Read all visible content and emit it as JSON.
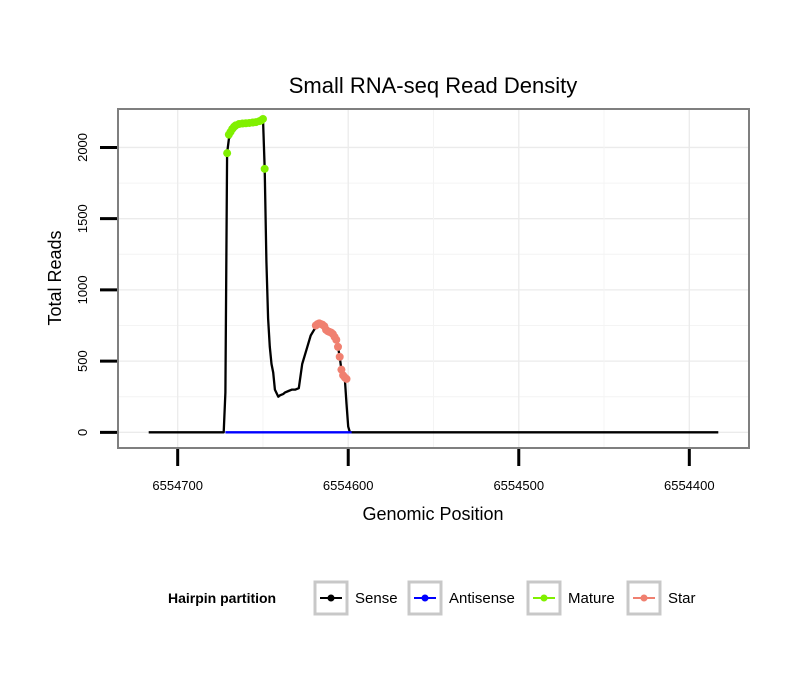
{
  "chart_data": {
    "type": "line",
    "title": "Small RNA-seq Read Density",
    "xlabel": "Genomic Position",
    "ylabel": "Total Reads",
    "x_reversed": true,
    "xlim": [
      6554735,
      6554365
    ],
    "ylim": [
      -110,
      2270
    ],
    "x_ticks": [
      6554700,
      6554600,
      6554500,
      6554400
    ],
    "x_tick_labels": [
      "6554700",
      "6554600",
      "6554500",
      "6554400"
    ],
    "y_ticks": [
      0,
      500,
      1000,
      1500,
      2000
    ],
    "y_tick_labels": [
      "0",
      "500",
      "1000",
      "1500",
      "2000"
    ],
    "grid": true,
    "legend": {
      "title": "Hairpin partition",
      "position": "bottom",
      "entries": [
        {
          "label": "Sense",
          "color": "#000000"
        },
        {
          "label": "Antisense",
          "color": "#0000ff"
        },
        {
          "label": "Mature",
          "color": "#80f000"
        },
        {
          "label": "Star",
          "color": "#f08070"
        }
      ]
    },
    "series": [
      {
        "name": "Sense",
        "color": "#000000",
        "markers": false,
        "x": [
          6554717,
          6554673,
          6554672,
          6554671,
          6554670,
          6554668,
          6554666,
          6554664,
          6554662,
          6554660,
          6554658,
          6554656,
          6554654,
          6554652,
          6554651,
          6554650,
          6554649,
          6554648,
          6554647,
          6554646,
          6554645,
          6554644,
          6554643,
          6554641,
          6554640,
          6554638,
          6554637,
          6554635,
          6554633,
          6554631,
          6554629,
          6554627,
          6554624,
          6554622,
          6554620,
          6554618,
          6554616,
          6554614,
          6554613,
          6554612,
          6554611,
          6554610,
          6554609,
          6554608,
          6554607,
          6554606,
          6554605,
          6554604,
          6554603,
          6554602,
          6554601,
          6554600,
          6554599,
          6554598,
          6554383
        ],
        "y": [
          0,
          0,
          280,
          1960,
          2060,
          2100,
          2130,
          2150,
          2160,
          2170,
          2175,
          2178,
          2180,
          2185,
          2190,
          2200,
          1850,
          1200,
          800,
          600,
          480,
          420,
          300,
          250,
          260,
          270,
          280,
          290,
          300,
          300,
          310,
          480,
          600,
          680,
          720,
          750,
          760,
          755,
          740,
          720,
          710,
          700,
          690,
          670,
          650,
          600,
          530,
          440,
          390,
          380,
          200,
          40,
          0,
          0,
          0
        ]
      },
      {
        "name": "Antisense",
        "color": "#0000ff",
        "markers": false,
        "x": [
          6554672,
          6554598
        ],
        "y": [
          0,
          0
        ]
      },
      {
        "name": "Mature",
        "color": "#80f000",
        "markers": true,
        "x": [
          6554671,
          6554670,
          6554669,
          6554668,
          6554667,
          6554666,
          6554664,
          6554662,
          6554660,
          6554658,
          6554656,
          6554654,
          6554652,
          6554651,
          6554650,
          6554649
        ],
        "y": [
          1960,
          2090,
          2110,
          2130,
          2145,
          2155,
          2165,
          2168,
          2170,
          2172,
          2175,
          2178,
          2185,
          2190,
          2200,
          1850
        ]
      },
      {
        "name": "Star",
        "color": "#f08070",
        "markers": true,
        "x": [
          6554619,
          6554618,
          6554617,
          6554616,
          6554615,
          6554614,
          6554613,
          6554612,
          6554611,
          6554610,
          6554609,
          6554608,
          6554607,
          6554606,
          6554605,
          6554604,
          6554603,
          6554602,
          6554601
        ],
        "y": [
          750,
          760,
          765,
          760,
          755,
          745,
          720,
          710,
          705,
          700,
          690,
          670,
          650,
          600,
          530,
          440,
          400,
          385,
          375
        ]
      }
    ]
  }
}
